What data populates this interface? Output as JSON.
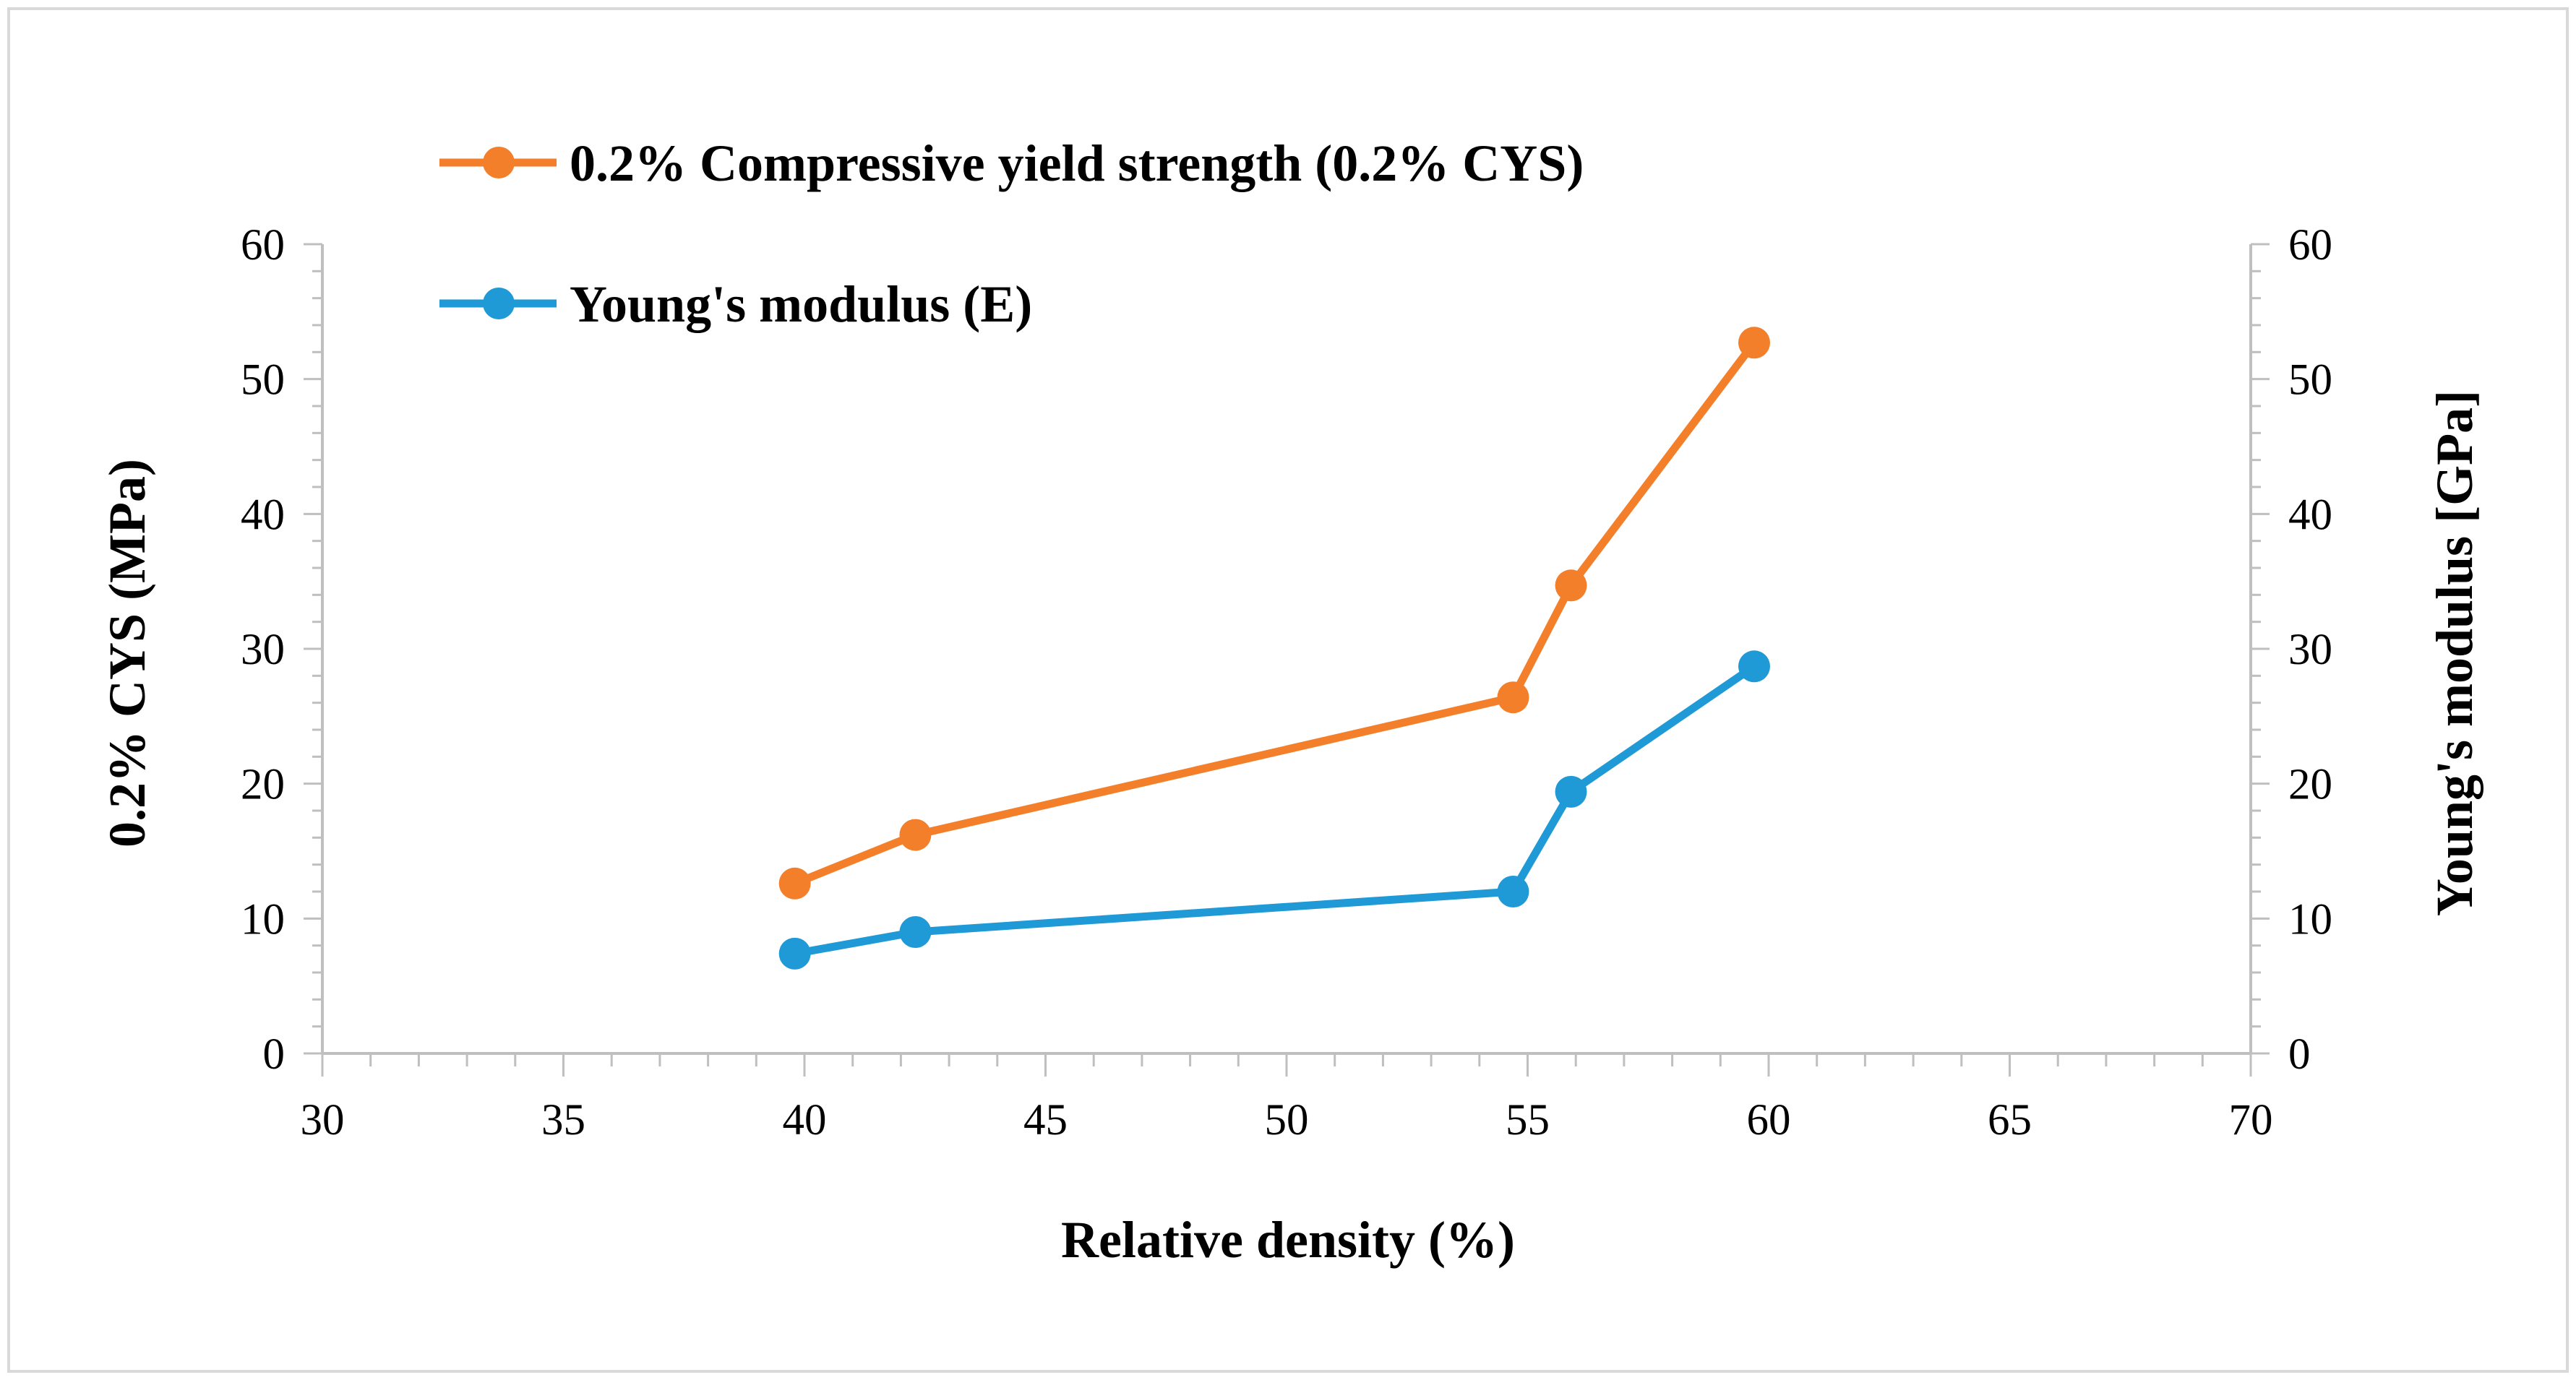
{
  "chart_data": {
    "type": "line",
    "title": "",
    "xlabel": "Relative density (%)",
    "ylabel": "0.2% CYS (MPa)",
    "y2label": "Young's modulus [GPa]",
    "xlim": [
      30,
      70
    ],
    "ylim": [
      0,
      60
    ],
    "y2lim": [
      0,
      60
    ],
    "x_ticks": [
      "30",
      "35",
      "40",
      "45",
      "50",
      "55",
      "60",
      "65",
      "70"
    ],
    "y_ticks": [
      "0",
      "10",
      "20",
      "30",
      "40",
      "50",
      "60"
    ],
    "y2_ticks": [
      "0",
      "10",
      "20",
      "30",
      "40",
      "50",
      "60"
    ],
    "grid": false,
    "legend_position": "top-left",
    "series": [
      {
        "name": "0.2% Compressive yield strength (0.2% CYS)",
        "axis": "left",
        "color": "#F47F2A",
        "x": [
          39.8,
          42.3,
          54.7,
          55.9,
          59.7
        ],
        "y": [
          12.6,
          16.2,
          26.4,
          34.7,
          52.7
        ]
      },
      {
        "name": "Young's modulus (E)",
        "axis": "right",
        "color": "#1F9AD6",
        "x": [
          39.8,
          42.3,
          54.7,
          55.9,
          59.7
        ],
        "y": [
          7.4,
          9.0,
          12.0,
          19.4,
          28.7
        ]
      }
    ]
  }
}
